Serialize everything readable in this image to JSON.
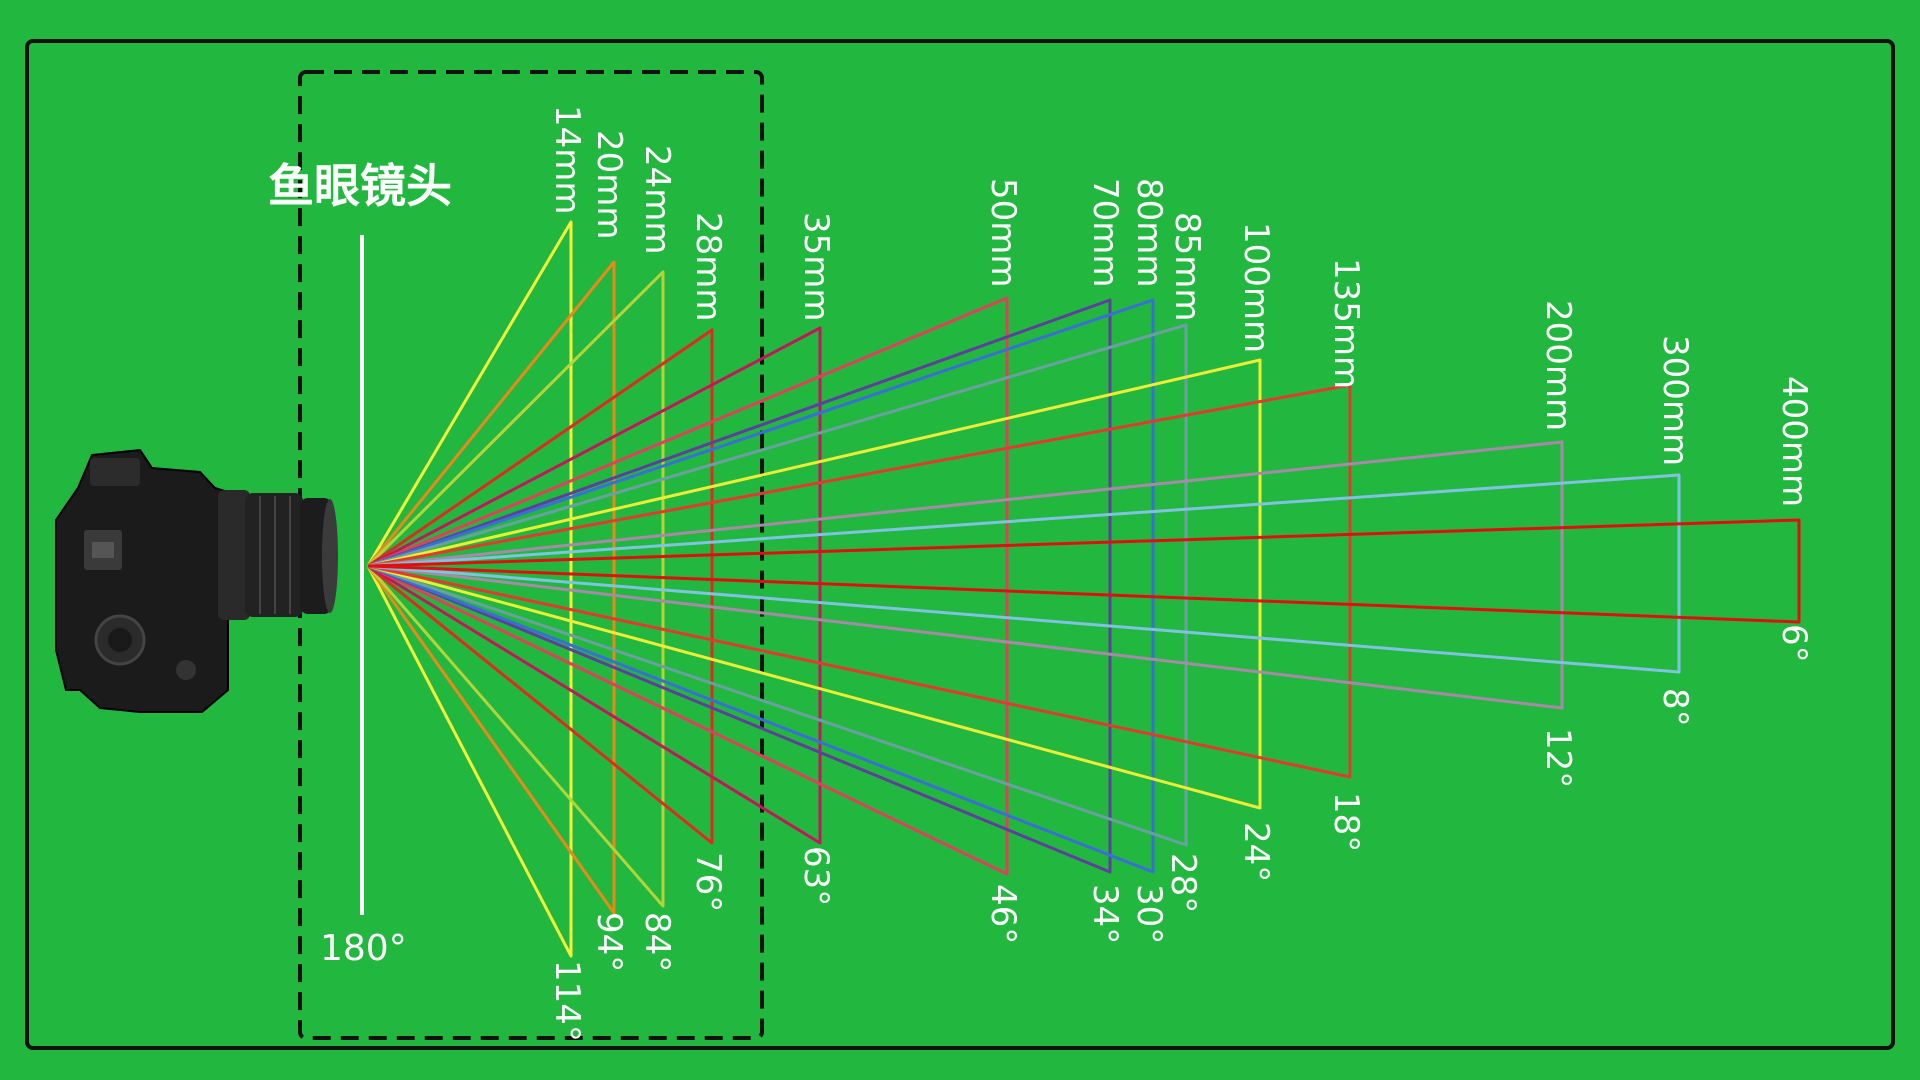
{
  "title": "鱼眼镜头",
  "fisheye_angle_label": "180°",
  "colors": {
    "background": "#22b83f",
    "border": "#111111",
    "label_text": "#ffffff",
    "fisheye_line": "#ffffff",
    "dashed_box": "#111111"
  },
  "icons": {
    "camera": "dslr-camera-icon"
  },
  "lenses": [
    {
      "focal": "14mm",
      "angle": "114°",
      "color": "#f2f23a"
    },
    {
      "focal": "20mm",
      "angle": "94°",
      "color": "#e88a1a"
    },
    {
      "focal": "24mm",
      "angle": "84°",
      "color": "#b5d43a"
    },
    {
      "focal": "28mm",
      "angle": "76°",
      "color": "#e02a20"
    },
    {
      "focal": "35mm",
      "angle": "63°",
      "color": "#c2185b"
    },
    {
      "focal": "50mm",
      "angle": "46°",
      "color": "#e0405a"
    },
    {
      "focal": "70mm",
      "angle": "34°",
      "color": "#5e3f9e"
    },
    {
      "focal": "80mm",
      "angle": "30°",
      "color": "#3a6fd6"
    },
    {
      "focal": "85mm",
      "angle": "28°",
      "color": "#6aa1a0"
    },
    {
      "focal": "100mm",
      "angle": "24°",
      "color": "#eded38"
    },
    {
      "focal": "135mm",
      "angle": "18°",
      "color": "#e23b2e"
    },
    {
      "focal": "200mm",
      "angle": "12°",
      "color": "#a78aa8"
    },
    {
      "focal": "300mm",
      "angle": "8°",
      "color": "#7fc3e0"
    },
    {
      "focal": "400mm",
      "angle": "6°",
      "color": "#e01010"
    }
  ]
}
